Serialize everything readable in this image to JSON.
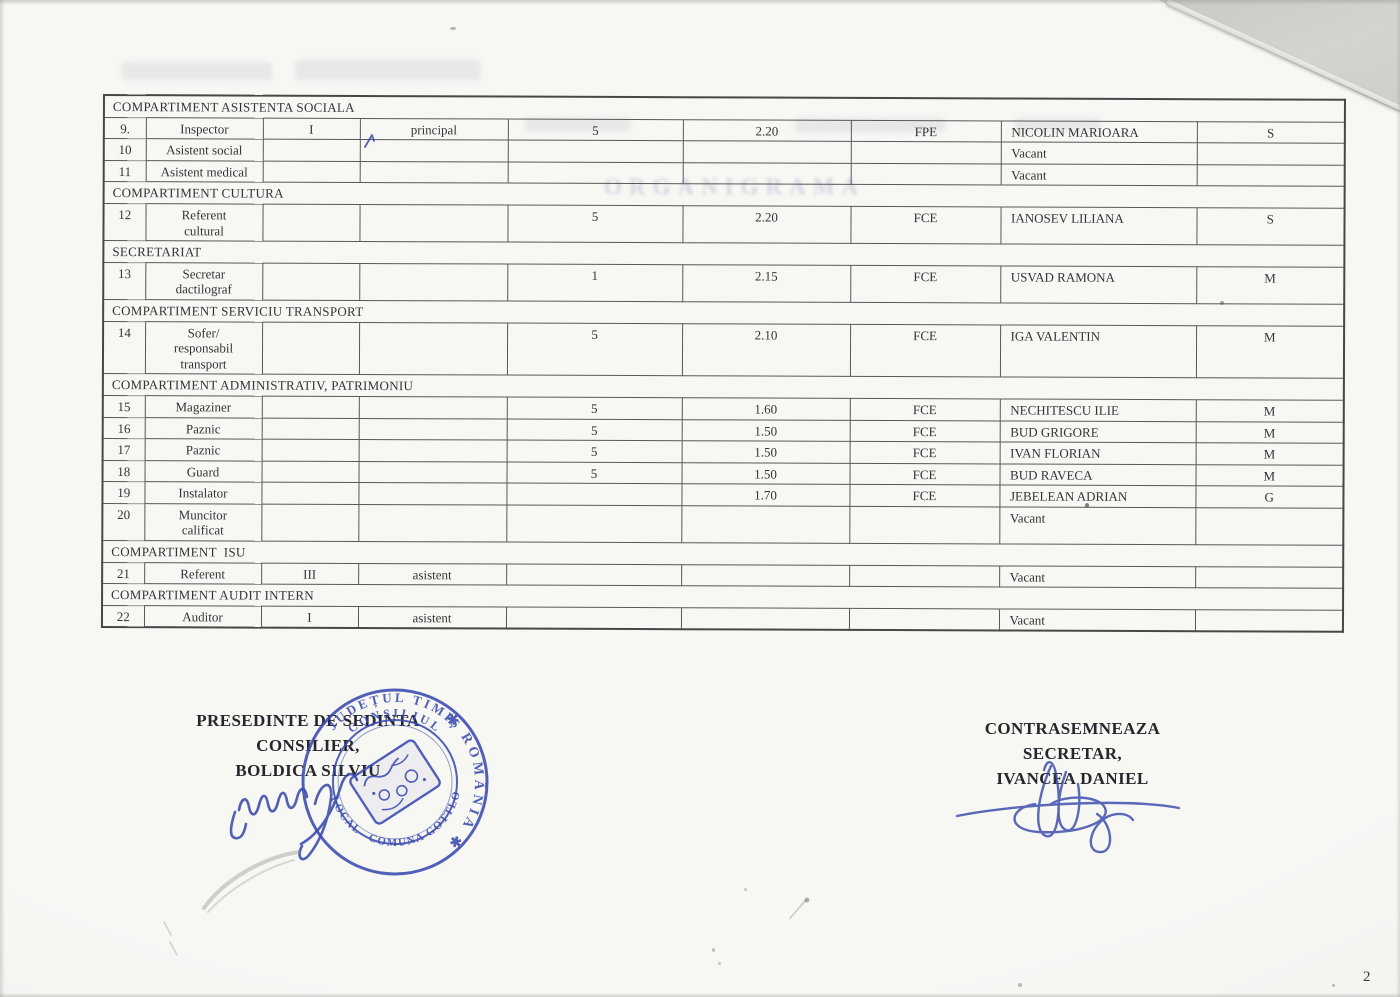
{
  "page": {
    "number": "2"
  },
  "table": {
    "column_names": [
      "nr-crt",
      "functie",
      "clasa",
      "grad-profesional",
      "nivel",
      "coeficient",
      "tip-functie",
      "nume-prenume",
      "studii"
    ],
    "rows": [
      {
        "type": "section",
        "label": "COMPARTIMENT ASISTENTA SOCIALA"
      },
      {
        "type": "data",
        "cells": [
          "9.",
          "Inspector",
          "I",
          "principal",
          "5",
          "2.20",
          "FPE",
          "NICOLIN MARIOARA",
          "S"
        ]
      },
      {
        "type": "data",
        "cells": [
          "10",
          "Asistent social",
          "",
          "",
          "",
          "",
          "",
          "Vacant",
          ""
        ]
      },
      {
        "type": "data",
        "cells": [
          "11",
          "Asistent medical",
          "",
          "",
          "",
          "",
          "",
          "Vacant",
          ""
        ]
      },
      {
        "type": "section",
        "label": "COMPARTIMENT CULTURA"
      },
      {
        "type": "data",
        "cells": [
          "12",
          "Referent\ncultural",
          "",
          "",
          "5",
          "2.20",
          "FCE",
          "IANOSEV LILIANA",
          "S"
        ]
      },
      {
        "type": "section",
        "label": "SECRETARIAT"
      },
      {
        "type": "data",
        "cells": [
          "13",
          "Secretar\ndactilograf",
          "",
          "",
          "1",
          "2.15",
          "FCE",
          "USVAD RAMONA",
          "M"
        ]
      },
      {
        "type": "section",
        "label": "COMPARTIMENT SERVICIU TRANSPORT"
      },
      {
        "type": "data",
        "cells": [
          "14",
          "Sofer/\nresponsabil\ntransport",
          "",
          "",
          "5",
          "2.10",
          "FCE",
          "IGA VALENTIN",
          "M"
        ]
      },
      {
        "type": "section",
        "label": "COMPARTIMENT ADMINISTRATIV, PATRIMONIU"
      },
      {
        "type": "data",
        "cells": [
          "15",
          "Magaziner",
          "",
          "",
          "5",
          "1.60",
          "FCE",
          "NECHITESCU ILIE",
          "M"
        ]
      },
      {
        "type": "data",
        "cells": [
          "16",
          "Paznic",
          "",
          "",
          "5",
          "1.50",
          "FCE",
          "BUD GRIGORE",
          "M"
        ]
      },
      {
        "type": "data",
        "cells": [
          "17",
          "Paznic",
          "",
          "",
          "5",
          "1.50",
          "FCE",
          "IVAN FLORIAN",
          "M"
        ]
      },
      {
        "type": "data",
        "cells": [
          "18",
          "Guard",
          "",
          "",
          "5",
          "1.50",
          "FCE",
          "BUD RAVECA",
          "M"
        ]
      },
      {
        "type": "data",
        "cells": [
          "19",
          "Instalator",
          "",
          "",
          "",
          "1.70",
          "FCE",
          "JEBELEAN ADRIAN",
          "G"
        ]
      },
      {
        "type": "data",
        "cells": [
          "20",
          "Muncitor\ncalificat",
          "",
          "",
          "",
          "",
          "",
          "Vacant",
          ""
        ]
      },
      {
        "type": "section",
        "label": "COMPARTIMENT  ISU"
      },
      {
        "type": "data",
        "cells": [
          "21",
          "Referent",
          "III",
          "asistent",
          "",
          "",
          "",
          "Vacant",
          ""
        ]
      },
      {
        "type": "section",
        "label": "COMPARTIMENT AUDIT INTERN"
      },
      {
        "type": "data",
        "cells": [
          "22",
          "Auditor",
          "I",
          "asistent",
          "",
          "",
          "",
          "Vacant",
          ""
        ]
      }
    ]
  },
  "footer": {
    "left": [
      "PRESEDINTE DE SEDINTA",
      "CONSILIER,",
      "BOLDICA SILVIU"
    ],
    "right": [
      "CONTRASEMNEAZA",
      "SECRETAR,",
      "IVANCEA DANIEL"
    ]
  },
  "stamp": {
    "county": "JUDEȚUL TIMIȘ",
    "country": "✱ ROMÂNIA ✱",
    "council": "CONSILIUL",
    "local": "LOCAL",
    "commune": "COMUNA GOTTLOB"
  },
  "artifacts": {
    "ghost_title": "ORGANIGRAMA"
  }
}
